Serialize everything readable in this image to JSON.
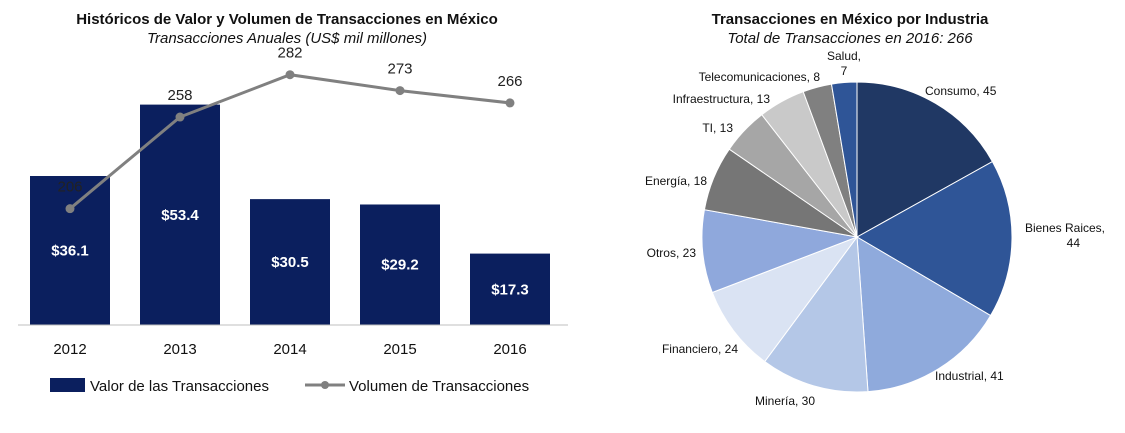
{
  "chart_data": [
    {
      "type": "bar",
      "title": "Históricos de Valor y Volumen de Transacciones en México",
      "subtitle": "Transacciones Anuales (US$ mil millones)",
      "categories": [
        "2012",
        "2013",
        "2014",
        "2015",
        "2016"
      ],
      "series": [
        {
          "name": "Valor de las Transacciones",
          "chart": "bar",
          "values": [
            36.1,
            53.4,
            30.5,
            29.2,
            17.3
          ],
          "labels": [
            "$36.1",
            "$53.4",
            "$30.5",
            "$29.2",
            "$17.3"
          ],
          "color": "#0b1f5e"
        },
        {
          "name": "Volumen de Transacciones",
          "chart": "line",
          "values": [
            206,
            258,
            282,
            273,
            266
          ],
          "labels": [
            "206",
            "258",
            "282",
            "273",
            "266"
          ],
          "color": "#808080"
        }
      ],
      "legend_position": "bottom",
      "ylim": [
        0,
        55
      ],
      "ylim_secondary": [
        140,
        300
      ]
    },
    {
      "type": "pie",
      "title": "Transacciones en México por Industria",
      "subtitle": "Total de Transacciones en 2016: 266",
      "slices": [
        {
          "label": "Consumo, 45",
          "value": 45,
          "color": "#203864"
        },
        {
          "label": "Bienes Raices, 44",
          "value": 44,
          "color": "#2f5597"
        },
        {
          "label": "Industrial, 41",
          "value": 41,
          "color": "#8faadc"
        },
        {
          "label": "Minería, 30",
          "value": 30,
          "color": "#b4c7e7"
        },
        {
          "label": "Financiero, 24",
          "value": 24,
          "color": "#dae3f3"
        },
        {
          "label": "Otros, 23",
          "value": 23,
          "color": "#8fa8dc"
        },
        {
          "label": "Energía, 18",
          "value": 18,
          "color": "#767676"
        },
        {
          "label": "TI, 13",
          "value": 13,
          "color": "#a6a6a6"
        },
        {
          "label": "Infraestructura, 13",
          "value": 13,
          "color": "#c9c9c9"
        },
        {
          "label": "Telecomunicaciones, 8",
          "value": 8,
          "color": "#808080"
        },
        {
          "label": "Salud, 7",
          "value": 7,
          "color": "#2f5597"
        }
      ]
    }
  ]
}
